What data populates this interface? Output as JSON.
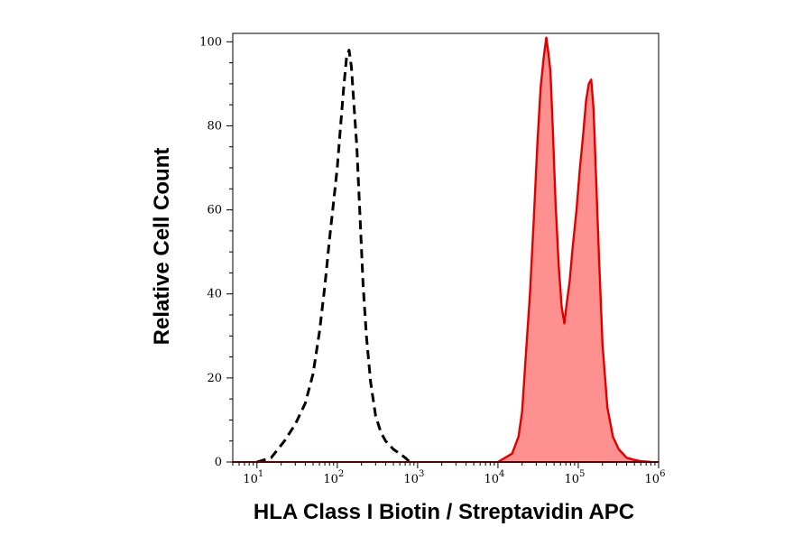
{
  "chart_data": {
    "type": "area",
    "title": "",
    "xlabel": "HLA Class I Biotin / Streptavidin APC",
    "ylabel": "Relative Cell Count",
    "xscale": "log",
    "xlim": [
      5,
      1000000
    ],
    "ylim": [
      0,
      102
    ],
    "grid": false,
    "x_tick_labels": [
      {
        "base": "10",
        "exp": "1",
        "value": 10
      },
      {
        "base": "10",
        "exp": "2",
        "value": 100
      },
      {
        "base": "10",
        "exp": "3",
        "value": 1000
      },
      {
        "base": "10",
        "exp": "4",
        "value": 10000
      },
      {
        "base": "10",
        "exp": "5",
        "value": 100000
      },
      {
        "base": "10",
        "exp": "6",
        "value": 1000000
      }
    ],
    "y_tick_labels": [
      "0",
      "20",
      "40",
      "60",
      "80",
      "100"
    ],
    "y_ticks": [
      0,
      20,
      40,
      60,
      80,
      100
    ],
    "series": [
      {
        "style": "dashed-outline",
        "color": "#000000",
        "x": [
          10,
          15,
          22,
          30,
          40,
          50,
          60,
          70,
          80,
          90,
          100,
          110,
          120,
          130,
          140,
          150,
          160,
          175,
          190,
          210,
          230,
          260,
          300,
          350,
          400,
          500,
          600,
          700,
          800
        ],
        "y": [
          0,
          1,
          5,
          9,
          14,
          21,
          31,
          42,
          53,
          62,
          70,
          80,
          89,
          96,
          98,
          94,
          86,
          75,
          60,
          42,
          30,
          19,
          11,
          7,
          5,
          3,
          2,
          1,
          0
        ]
      },
      {
        "style": "filled",
        "color": "#e00000",
        "fill": "#ff9090",
        "x": [
          10000,
          15000,
          18000,
          20000,
          22000,
          25000,
          28000,
          31000,
          34000,
          37000,
          40000,
          42000,
          45000,
          48000,
          52000,
          57000,
          62000,
          67000,
          72000,
          78000,
          85000,
          95000,
          105000,
          115000,
          125000,
          135000,
          145000,
          155000,
          165000,
          180000,
          200000,
          230000,
          270000,
          320000,
          400000,
          500000,
          600000,
          800000
        ],
        "y": [
          0,
          2,
          6,
          12,
          24,
          40,
          58,
          76,
          89,
          96,
          101,
          98,
          93,
          80,
          62,
          47,
          37,
          33,
          38,
          43,
          51,
          60,
          70,
          78,
          86,
          90,
          91,
          84,
          70,
          50,
          28,
          13,
          6,
          3,
          1,
          0.5,
          0.2,
          0
        ]
      }
    ]
  }
}
